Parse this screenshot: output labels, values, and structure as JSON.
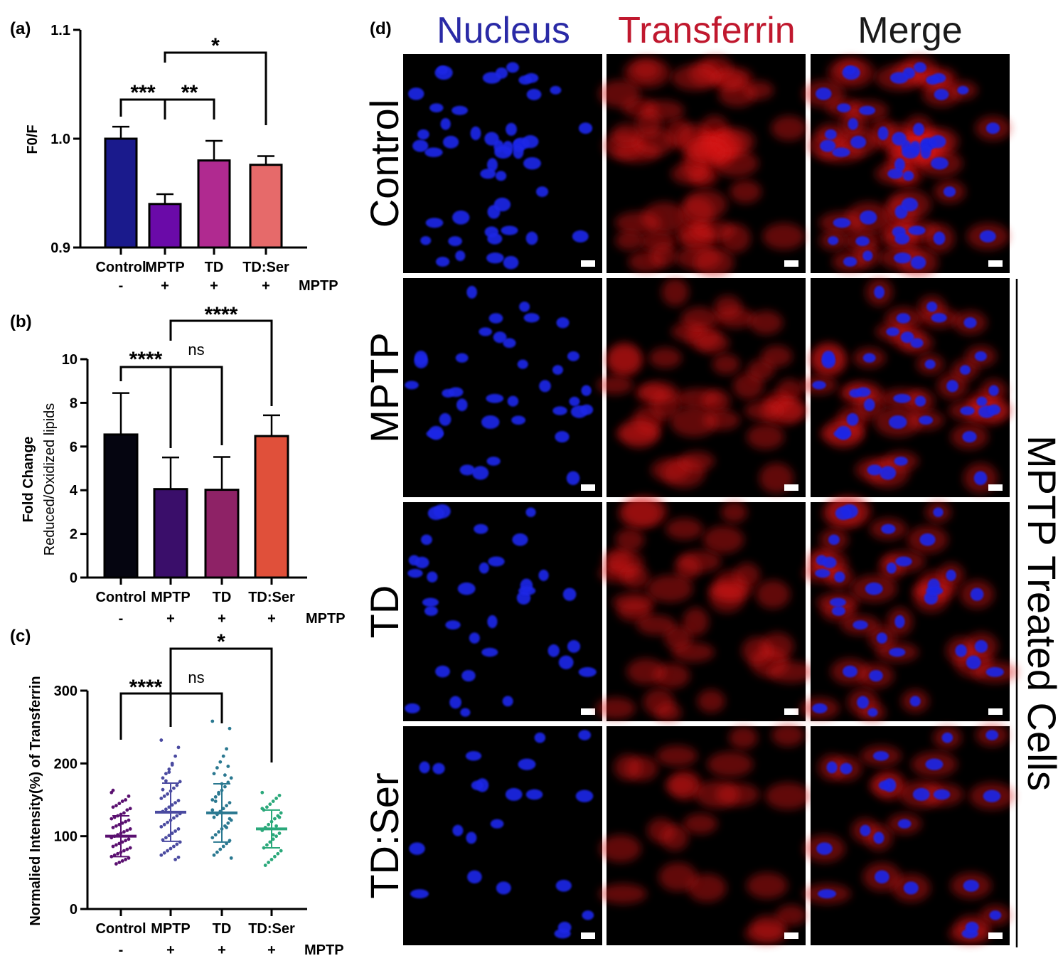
{
  "colors": {
    "nucleus": "#2a2aa6",
    "transferrin": "#c0182e",
    "merge": "#1a1a1a",
    "cell_red": "#d81818",
    "cell_blue": "#1e28e6"
  },
  "chart_data": [
    {
      "type": "bar",
      "panel": "(a)",
      "ylabel": "F0/F",
      "ylim": [
        0.9,
        1.1
      ],
      "yticks": [
        "0.9",
        "1.0",
        "1.1"
      ],
      "categories": [
        "Control",
        "MPTP",
        "TD",
        "TD:Ser"
      ],
      "values": [
        1.0,
        0.94,
        0.98,
        0.976
      ],
      "errors": [
        0.011,
        0.009,
        0.018,
        0.008
      ],
      "bar_colors": [
        "#1a1a8c",
        "#6a0aa8",
        "#b02a90",
        "#e66a6a"
      ],
      "treatment_label": "MPTP",
      "treatment_signs": [
        "-",
        "+",
        "+",
        "+"
      ],
      "comparisons": [
        {
          "from": 0,
          "to": 1,
          "label": "***"
        },
        {
          "from": 1,
          "to": 2,
          "label": "**"
        },
        {
          "from": 1,
          "to": 3,
          "label": "*"
        }
      ]
    },
    {
      "type": "bar",
      "panel": "(b)",
      "ylabel": "Fold Change",
      "ylabel2": "Reduced/Oxidized lipids",
      "ylim": [
        0,
        10
      ],
      "yticks": [
        "0",
        "2",
        "4",
        "6",
        "8",
        "10"
      ],
      "categories": [
        "Control",
        "MPTP",
        "TD",
        "TD:Ser"
      ],
      "values": [
        6.55,
        4.05,
        4.02,
        6.48
      ],
      "errors": [
        1.9,
        1.45,
        1.5,
        0.95
      ],
      "bar_colors": [
        "#050510",
        "#3a0e6a",
        "#8e2266",
        "#e0503a"
      ],
      "treatment_label": "MPTP",
      "treatment_signs": [
        "-",
        "+",
        "+",
        "+"
      ],
      "comparisons": [
        {
          "from": 0,
          "to": 1,
          "label": "****"
        },
        {
          "from": 1,
          "to": 2,
          "label": "ns"
        },
        {
          "from": 1,
          "to": 3,
          "label": "****"
        }
      ]
    },
    {
      "type": "scatter",
      "panel": "(c)",
      "ylabel": "Normalied Intensity(%) of Transferrin",
      "ylim": [
        0,
        300
      ],
      "yticks": [
        "0",
        "100",
        "200",
        "300"
      ],
      "categories": [
        "Control",
        "MPTP",
        "TD",
        "TD:Ser"
      ],
      "means": [
        100,
        133,
        132,
        110
      ],
      "sd": [
        28,
        40,
        40,
        26
      ],
      "group_colors": [
        "#5a1070",
        "#4a4aa0",
        "#2a7890",
        "#2aa87a"
      ],
      "points": [
        [
          160,
          155,
          150,
          148,
          145,
          142,
          140,
          138,
          136,
          132,
          130,
          128,
          126,
          124,
          122,
          120,
          118,
          116,
          114,
          112,
          110,
          108,
          106,
          104,
          102,
          100,
          98,
          96,
          94,
          92,
          90,
          88,
          86,
          84,
          82,
          80,
          78,
          76,
          74,
          72,
          70,
          68,
          66,
          64,
          62,
          163
        ],
        [
          232,
          222,
          210,
          200,
          192,
          186,
          180,
          175,
          170,
          166,
          162,
          158,
          155,
          152,
          149,
          146,
          143,
          140,
          137,
          134,
          131,
          128,
          125,
          122,
          119,
          116,
          113,
          110,
          107,
          104,
          101,
          98,
          95,
          92,
          89,
          86,
          83,
          80,
          77,
          74,
          71,
          68,
          198,
          188,
          176,
          164
        ],
        [
          258,
          248,
          220,
          210,
          202,
          194,
          186,
          180,
          174,
          168,
          163,
          158,
          154,
          150,
          146,
          142,
          138,
          134,
          130,
          126,
          122,
          118,
          114,
          110,
          106,
          102,
          98,
          94,
          90,
          86,
          82,
          78,
          74,
          70,
          196,
          184,
          172,
          160,
          148,
          136,
          124,
          112
        ],
        [
          160,
          156,
          152,
          148,
          144,
          140,
          136,
          132,
          128,
          124,
          120,
          116,
          112,
          108,
          104,
          100,
          96,
          92,
          88,
          84,
          80,
          76,
          72,
          68,
          64,
          60,
          138,
          126,
          114,
          102
        ]
      ],
      "treatment_label": "MPTP",
      "treatment_signs": [
        "-",
        "+",
        "+",
        "+"
      ],
      "comparisons": [
        {
          "from": 0,
          "to": 1,
          "label": "****"
        },
        {
          "from": 1,
          "to": 2,
          "label": "ns"
        },
        {
          "from": 1,
          "to": 3,
          "label": "*"
        }
      ]
    }
  ],
  "microscopy": {
    "panel": "(d)",
    "columns": [
      "Nucleus",
      "Transferrin",
      "Merge"
    ],
    "rows": [
      "Control",
      "MPTP",
      "TD",
      "TD:Ser"
    ],
    "side_label": "MPTP Treated Cells"
  }
}
